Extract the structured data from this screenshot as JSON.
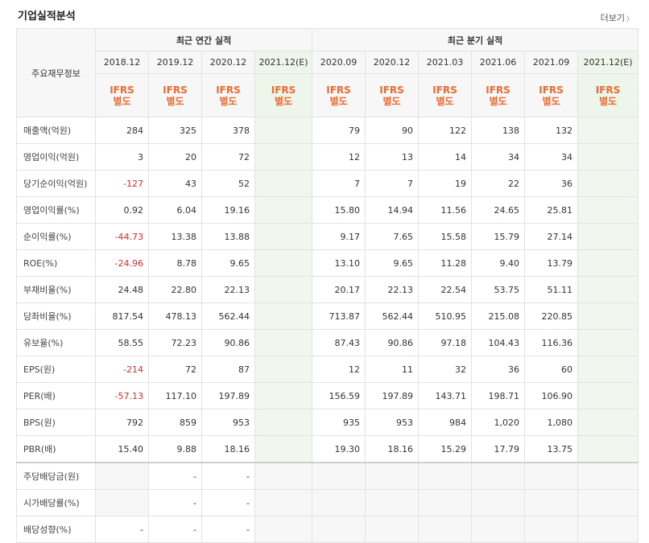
{
  "title": "기업실적분석",
  "more_label": "더보기",
  "header": {
    "row_label": "주요재무정보",
    "annual_group": "최근 연간 실적",
    "quarter_group": "최근 분기 실적",
    "columns": [
      "2018.12",
      "2019.12",
      "2020.12",
      "2021.12(E)",
      "2020.09",
      "2020.12",
      "2021.03",
      "2021.06",
      "2021.09",
      "2021.12(E)"
    ],
    "ifrs_line1": "IFRS",
    "ifrs_line2": "별도"
  },
  "rows": [
    {
      "label": "매출액(억원)",
      "cells": [
        "284",
        "325",
        "378",
        "",
        "79",
        "90",
        "122",
        "138",
        "132",
        ""
      ]
    },
    {
      "label": "영업이익(억원)",
      "cells": [
        "3",
        "20",
        "72",
        "",
        "12",
        "13",
        "14",
        "34",
        "34",
        ""
      ]
    },
    {
      "label": "당기순이익(억원)",
      "cells": [
        "-127",
        "43",
        "52",
        "",
        "7",
        "7",
        "19",
        "22",
        "36",
        ""
      ]
    },
    {
      "label": "영업이익률(%)",
      "cells": [
        "0.92",
        "6.04",
        "19.16",
        "",
        "15.80",
        "14.94",
        "11.56",
        "24.65",
        "25.81",
        ""
      ]
    },
    {
      "label": "순이익률(%)",
      "cells": [
        "-44.73",
        "13.38",
        "13.88",
        "",
        "9.17",
        "7.65",
        "15.58",
        "15.79",
        "27.14",
        ""
      ]
    },
    {
      "label": "ROE(%)",
      "cells": [
        "-24.96",
        "8.78",
        "9.65",
        "",
        "13.10",
        "9.65",
        "11.28",
        "9.40",
        "13.79",
        ""
      ]
    },
    {
      "label": "부채비율(%)",
      "cells": [
        "24.48",
        "22.80",
        "22.13",
        "",
        "20.17",
        "22.13",
        "22.54",
        "53.75",
        "51.11",
        ""
      ]
    },
    {
      "label": "당좌비율(%)",
      "cells": [
        "817.54",
        "478.13",
        "562.44",
        "",
        "713.87",
        "562.44",
        "510.95",
        "215.08",
        "220.85",
        ""
      ]
    },
    {
      "label": "유보율(%)",
      "cells": [
        "58.55",
        "72.23",
        "90.86",
        "",
        "87.43",
        "90.86",
        "97.18",
        "104.43",
        "116.36",
        ""
      ]
    },
    {
      "label": "EPS(원)",
      "cells": [
        "-214",
        "72",
        "87",
        "",
        "12",
        "11",
        "32",
        "36",
        "60",
        ""
      ]
    },
    {
      "label": "PER(배)",
      "cells": [
        "-57.13",
        "117.10",
        "197.89",
        "",
        "156.59",
        "197.89",
        "143.71",
        "198.71",
        "106.90",
        ""
      ]
    },
    {
      "label": "BPS(원)",
      "cells": [
        "792",
        "859",
        "953",
        "",
        "935",
        "953",
        "984",
        "1,020",
        "1,080",
        ""
      ]
    },
    {
      "label": "PBR(배)",
      "cells": [
        "15.40",
        "9.88",
        "18.16",
        "",
        "19.30",
        "18.16",
        "15.29",
        "17.79",
        "13.75",
        ""
      ]
    },
    {
      "label": "주당배당금(원)",
      "cells": [
        "",
        "-",
        "-",
        "",
        "",
        "",
        "",
        "",
        "",
        ""
      ]
    },
    {
      "label": "시가배당률(%)",
      "cells": [
        "",
        "-",
        "-",
        "",
        "",
        "",
        "",
        "",
        "",
        ""
      ]
    },
    {
      "label": "배당성향(%)",
      "cells": [
        "-",
        "-",
        "-",
        "",
        "",
        "",
        "",
        "",
        "",
        ""
      ]
    }
  ]
}
